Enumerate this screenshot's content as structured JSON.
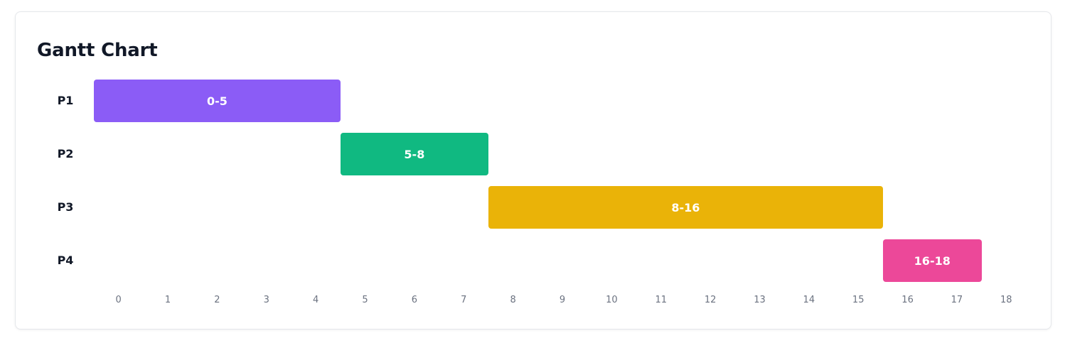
{
  "chart_data": {
    "type": "bar",
    "title": "Gantt Chart",
    "xlim": [
      0,
      18
    ],
    "grid": false,
    "rows": [
      {
        "label": "P1",
        "start": 0,
        "end": 5,
        "bar_label": "0-5",
        "color": "#8b5cf6"
      },
      {
        "label": "P2",
        "start": 5,
        "end": 8,
        "bar_label": "5-8",
        "color": "#10b981"
      },
      {
        "label": "P3",
        "start": 8,
        "end": 16,
        "bar_label": "8-16",
        "color": "#eab308"
      },
      {
        "label": "P4",
        "start": 16,
        "end": 18,
        "bar_label": "16-18",
        "color": "#ec4899"
      }
    ],
    "ticks": [
      "0",
      "1",
      "2",
      "3",
      "4",
      "5",
      "6",
      "7",
      "8",
      "9",
      "10",
      "11",
      "12",
      "13",
      "14",
      "15",
      "16",
      "17",
      "18"
    ]
  }
}
